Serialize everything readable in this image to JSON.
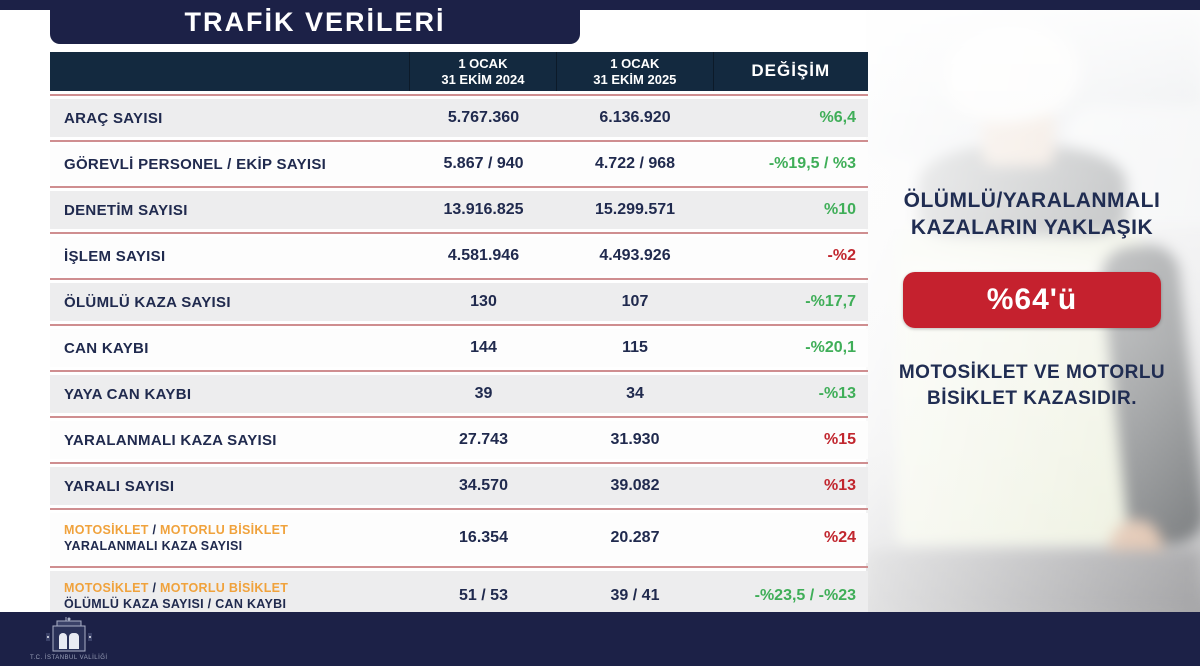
{
  "title": "TRAFİK VERİLERİ",
  "accent_colors": {
    "navy_band": "#1c2147",
    "header_navy": "#13293f",
    "separator_pink": "#cf8e90",
    "positive_green": "#3fae58",
    "negative_red": "#c1262e",
    "highlight_orange": "#f0a23c",
    "badge_red": "#c5212e"
  },
  "table": {
    "columns": [
      {
        "line1": "1 OCAK",
        "line2": "31 EKİM 2024"
      },
      {
        "line1": "1 OCAK",
        "line2": "31 EKİM 2025"
      },
      {
        "line1": "DEĞİŞİM",
        "line2": ""
      }
    ],
    "rows": [
      {
        "label": "ARAÇ SAYISI",
        "v2024": "5.767.360",
        "v2025": "6.136.920",
        "change": "%6,4",
        "change_color": "green"
      },
      {
        "label": "GÖREVLİ PERSONEL / EKİP SAYISI",
        "v2024": "5.867 / 940",
        "v2025": "4.722 / 968",
        "change": "-%19,5 / %3",
        "change_color": "green"
      },
      {
        "label": "DENETİM SAYISI",
        "v2024": "13.916.825",
        "v2025": "15.299.571",
        "change": "%10",
        "change_color": "green"
      },
      {
        "label": "İŞLEM SAYISI",
        "v2024": "4.581.946",
        "v2025": "4.493.926",
        "change": "-%2",
        "change_color": "red"
      },
      {
        "label": "ÖLÜMLÜ KAZA SAYISI",
        "v2024": "130",
        "v2025": "107",
        "change": "-%17,7",
        "change_color": "green"
      },
      {
        "label": "CAN KAYBI",
        "v2024": "144",
        "v2025": "115",
        "change": "-%20,1",
        "change_color": "green"
      },
      {
        "label": "YAYA CAN KAYBI",
        "v2024": "39",
        "v2025": "34",
        "change": "-%13",
        "change_color": "green"
      },
      {
        "label": "YARALANMALI KAZA SAYISI",
        "v2024": "27.743",
        "v2025": "31.930",
        "change": "%15",
        "change_color": "red"
      },
      {
        "label": "YARALI SAYISI",
        "v2024": "34.570",
        "v2025": "39.082",
        "change": "%13",
        "change_color": "red"
      },
      {
        "label_prefix_a": "MOTOSİKLET",
        "label_prefix_sep": " / ",
        "label_prefix_b": "MOTORLU BİSİKLET",
        "label": "YARALANMALI KAZA SAYISI",
        "v2024": "16.354",
        "v2025": "20.287",
        "change": "%24",
        "change_color": "red"
      },
      {
        "label_prefix_a": "MOTOSİKLET",
        "label_prefix_sep": " / ",
        "label_prefix_b": "MOTORLU BİSİKLET",
        "label": "ÖLÜMLÜ KAZA SAYISI / CAN KAYBI",
        "v2024": "51 / 53",
        "v2025": "39 / 41",
        "change": "-%23,5 / -%23",
        "change_color": "green"
      }
    ]
  },
  "callout": {
    "heading_line1": "ÖLÜMLÜ/YARALANMALI",
    "heading_line2": "KAZALARIN YAKLAŞIK",
    "badge": "%64'ü",
    "caption_line1": "MOTOSİKLET VE MOTORLU",
    "caption_line2": "BİSİKLET KAZASIDIR."
  },
  "footer": {
    "logo_caption": "T.C. İSTANBUL VALİLİĞİ"
  },
  "chart_data": {
    "type": "table",
    "title": "TRAFİK VERİLERİ",
    "columns": [
      "",
      "1 OCAK 31 EKİM 2024",
      "1 OCAK 31 EKİM 2025",
      "DEĞİŞİM"
    ],
    "rows": [
      [
        "ARAÇ SAYISI",
        "5.767.360",
        "6.136.920",
        "%6,4"
      ],
      [
        "GÖREVLİ PERSONEL / EKİP SAYISI",
        "5.867 / 940",
        "4.722 / 968",
        "-%19,5 / %3"
      ],
      [
        "DENETİM SAYISI",
        "13.916.825",
        "15.299.571",
        "%10"
      ],
      [
        "İŞLEM SAYISI",
        "4.581.946",
        "4.493.926",
        "-%2"
      ],
      [
        "ÖLÜMLÜ KAZA SAYISI",
        "130",
        "107",
        "-%17,7"
      ],
      [
        "CAN KAYBI",
        "144",
        "115",
        "-%20,1"
      ],
      [
        "YAYA CAN KAYBI",
        "39",
        "34",
        "-%13"
      ],
      [
        "YARALANMALI KAZA SAYISI",
        "27.743",
        "31.930",
        "%15"
      ],
      [
        "YARALI SAYISI",
        "34.570",
        "39.082",
        "%13"
      ],
      [
        "MOTOSİKLET / MOTORLU BİSİKLET YARALANMALI KAZA SAYISI",
        "16.354",
        "20.287",
        "%24"
      ],
      [
        "MOTOSİKLET / MOTORLU BİSİKLET ÖLÜMLÜ KAZA SAYISI / CAN KAYBI",
        "51 / 53",
        "39 / 41",
        "-%23,5 / -%23"
      ]
    ],
    "annotation": "ÖLÜMLÜ/YARALANMALI KAZALARIN YAKLAŞIK %64'ü MOTOSİKLET VE MOTORLU BİSİKLET KAZASIDIR."
  }
}
